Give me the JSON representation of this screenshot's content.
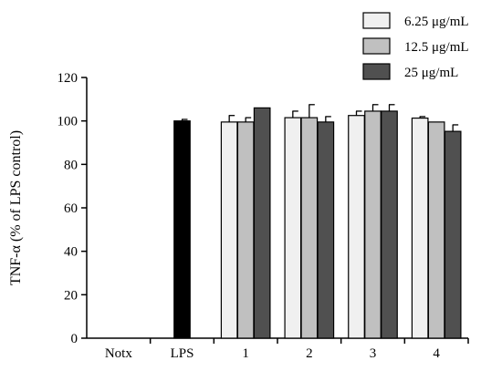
{
  "chart_data": {
    "type": "bar",
    "ylabel": "TNF-α (% of LPS control)",
    "ylim": [
      0,
      120
    ],
    "yticks": [
      0,
      20,
      40,
      60,
      80,
      100,
      120
    ],
    "categories": [
      "Notx",
      "LPS",
      "1",
      "2",
      "3",
      "4"
    ],
    "single": [
      {
        "category": "Notx",
        "value": 0,
        "error": 0
      },
      {
        "category": "LPS",
        "value": 100,
        "error": 0.7,
        "color": "#000000"
      }
    ],
    "series": [
      {
        "name": "6.25  μg/mL",
        "color": "#f0f0f0",
        "values": [
          null,
          null,
          99.5,
          101.5,
          102.5,
          101.3
        ],
        "errors": [
          null,
          null,
          3,
          3,
          2,
          0.7
        ]
      },
      {
        "name": "12.5  μg/mL",
        "color": "#c0c0c0",
        "values": [
          null,
          null,
          99.5,
          101.5,
          104.5,
          99.5
        ],
        "errors": [
          null,
          null,
          2,
          6,
          3,
          0
        ]
      },
      {
        "name": "25  μg/mL",
        "color": "#505050",
        "values": [
          null,
          null,
          106,
          99.5,
          104.5,
          95.2
        ],
        "errors": [
          null,
          null,
          0,
          2.5,
          3,
          3
        ]
      }
    ],
    "legend_position": "top-right",
    "grid": false
  }
}
